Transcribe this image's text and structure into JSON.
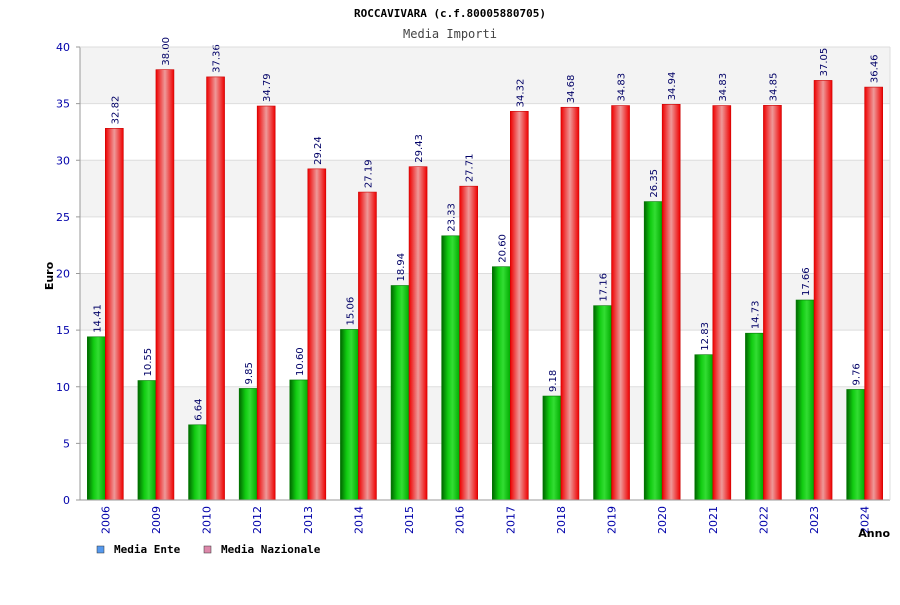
{
  "chart_data": {
    "type": "bar",
    "title": "ROCCAVIVARA (c.f.80005880705)",
    "subtitle": "Media Importi",
    "xlabel": "Anno",
    "ylabel": "Euro",
    "ylim": [
      0,
      40
    ],
    "yticks": [
      "0",
      "5",
      "10",
      "15",
      "20",
      "25",
      "30",
      "35",
      "40"
    ],
    "grid": true,
    "legend_position": "bottom-left",
    "categories": [
      "2006",
      "2009",
      "2010",
      "2012",
      "2013",
      "2014",
      "2015",
      "2016",
      "2017",
      "2018",
      "2019",
      "2020",
      "2021",
      "2022",
      "2023",
      "2024"
    ],
    "series": [
      {
        "name": "Media Ente",
        "color": "#00bb00",
        "legend_color": "#5599ee",
        "values": [
          14.41,
          10.55,
          6.64,
          9.85,
          10.6,
          15.06,
          18.94,
          23.33,
          20.6,
          9.18,
          17.16,
          26.35,
          12.83,
          14.73,
          17.66,
          9.76
        ],
        "labels": [
          "14.41",
          "10.55",
          "6.64",
          "9.85",
          "10.60",
          "15.06",
          "18.94",
          "23.33",
          "20.60",
          "9.18",
          "17.16",
          "26.35",
          "12.83",
          "14.73",
          "17.66",
          "9.76"
        ]
      },
      {
        "name": "Media Nazionale",
        "color": "#ee1111",
        "legend_color": "#dd88aa",
        "values": [
          32.82,
          38.0,
          37.36,
          34.79,
          29.24,
          27.19,
          29.43,
          27.71,
          34.32,
          34.68,
          34.83,
          34.94,
          34.83,
          34.85,
          37.05,
          36.46
        ],
        "labels": [
          "32.82",
          "38.00",
          "37.36",
          "34.79",
          "29.24",
          "27.19",
          "29.43",
          "27.71",
          "34.32",
          "34.68",
          "34.83",
          "34.94",
          "34.83",
          "34.85",
          "37.05",
          "36.46"
        ]
      }
    ]
  }
}
